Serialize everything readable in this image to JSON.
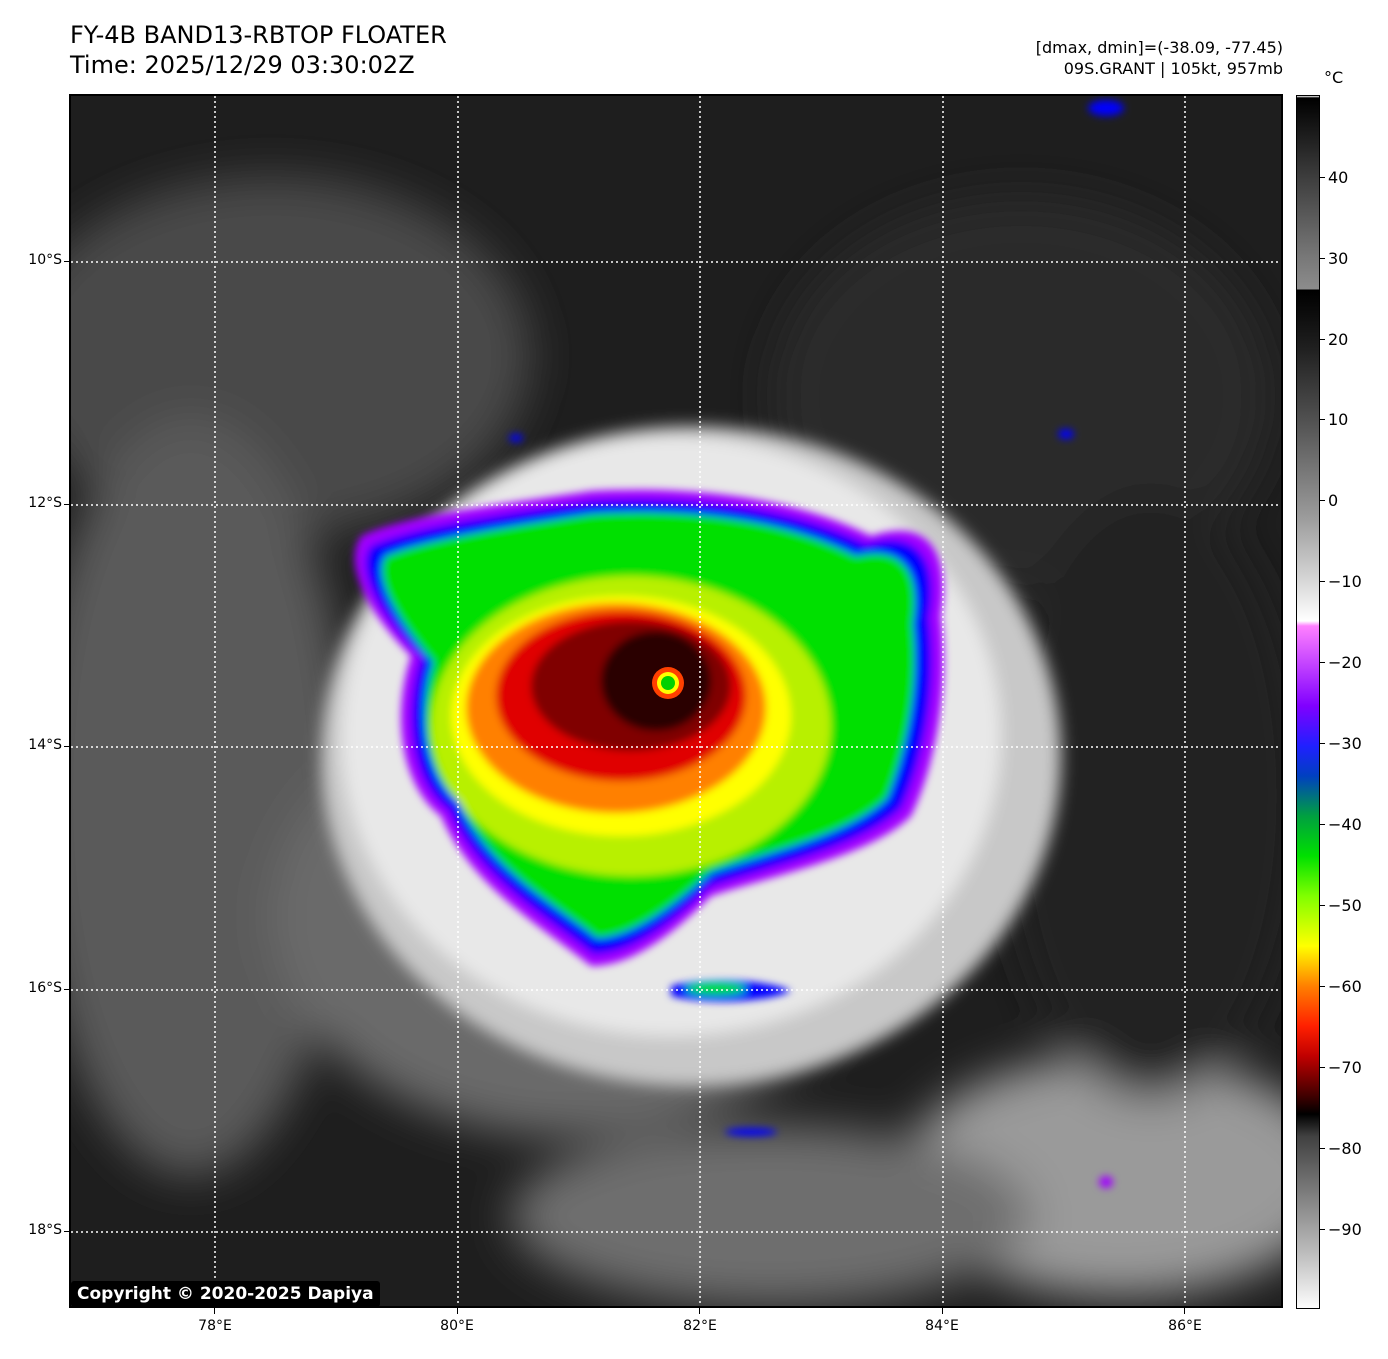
{
  "header": {
    "title_line1": "FY-4B BAND13-RBTOP FLOATER",
    "title_line2": "Time: 2025/12/29 03:30:02Z",
    "info_line1": "[dmax, dmin]=(-38.09, -77.45)",
    "info_line2": "09S.GRANT | 105kt, 957mb"
  },
  "map": {
    "lat_labels": [
      "10°S",
      "12°S",
      "14°S",
      "16°S",
      "18°S"
    ],
    "lon_labels": [
      "78°E",
      "80°E",
      "82°E",
      "84°E",
      "86°E"
    ],
    "copyright": "Copyright © 2020-2025 Dapiya"
  },
  "colorbar": {
    "unit": "°C",
    "tick_labels": [
      "40",
      "30",
      "20",
      "10",
      "0",
      "−10",
      "−20",
      "−30",
      "−40",
      "−50",
      "−60",
      "−70",
      "−80",
      "−90"
    ]
  },
  "colors": {
    "eye": "#00d000",
    "cdo_core": "#2a0000",
    "red": "#e00000",
    "orange": "#ff8000",
    "yellow": "#ffff00",
    "green": "#00e000",
    "blue": "#0000ff",
    "purple": "#a000ff"
  }
}
